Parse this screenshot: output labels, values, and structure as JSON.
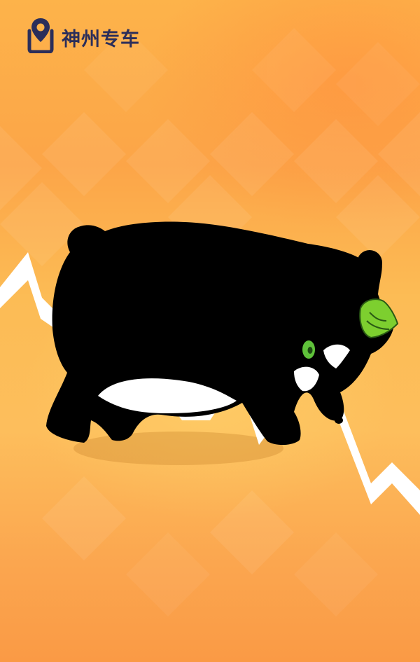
{
  "brand": {
    "name": "神州专车",
    "icon": "location-pin-icon",
    "color": "#2b2e5a"
  },
  "palette": {
    "background_top": "#fdb34a",
    "background_bottom": "#fa9a45",
    "trend_line": "#ffffff",
    "bear_body": "#000000",
    "bear_belly": "#ffffff",
    "accent_green": "#7dcf2f"
  }
}
